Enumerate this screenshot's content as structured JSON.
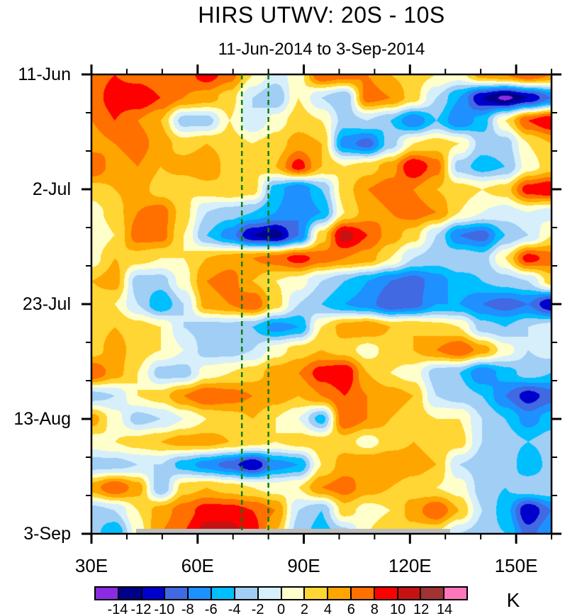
{
  "title": "HIRS UTWV: 20S - 10S",
  "subtitle": "11-Jun-2014 to 3-Sep-2014",
  "colorbar": {
    "units_label": "K",
    "boundary_labels": [
      "-14",
      "-12",
      "-10",
      "-8",
      "-6",
      "-4",
      "-2",
      "0",
      "2",
      "4",
      "6",
      "8",
      "10",
      "12",
      "14"
    ]
  },
  "chart_data": {
    "type": "heatmap",
    "title": "HIRS UTWV: 20S - 10S",
    "subtitle": "11-Jun-2014 to 3-Sep-2014",
    "units": "K",
    "x_axis": "longitude",
    "y_axis": "date (top = 11-Jun-2014, bottom = 3-Sep-2014)",
    "x_range_deg_east": [
      30,
      160
    ],
    "y_range_days": [
      0,
      84
    ],
    "grid_on": false,
    "x_ticks_major": [
      {
        "lon": 30,
        "label": "30E"
      },
      {
        "lon": 60,
        "label": "60E"
      },
      {
        "lon": 90,
        "label": "90E"
      },
      {
        "lon": 120,
        "label": "120E"
      },
      {
        "lon": 150,
        "label": "150E"
      }
    ],
    "x_tick_minor_lons": [
      40,
      50,
      70,
      80,
      100,
      110,
      130,
      140,
      160
    ],
    "y_ticks_major": [
      {
        "day": 0,
        "label": "11-Jun"
      },
      {
        "day": 21,
        "label": "2-Jul"
      },
      {
        "day": 42,
        "label": "23-Jul"
      },
      {
        "day": 63,
        "label": "13-Aug"
      },
      {
        "day": 84,
        "label": "3-Sep"
      }
    ],
    "y_tick_minor_days": [
      7,
      14,
      28,
      35,
      49,
      56,
      70,
      77
    ],
    "levels": [
      -14,
      -12,
      -10,
      -8,
      -6,
      -4,
      -2,
      0,
      2,
      4,
      6,
      8,
      10,
      12,
      14
    ],
    "palette": [
      "#8A2BE2",
      "#000088",
      "#0000CD",
      "#4169E1",
      "#1E90FF",
      "#00BFFF",
      "#A0CEF5",
      "#D6EFFB",
      "#FFFFCC",
      "#FFD633",
      "#FFA500",
      "#FF7000",
      "#FF0000",
      "#C51212",
      "#A03333",
      "#FF77BB"
    ],
    "reference_lines": {
      "style": "dashed",
      "color": "#0E7D0E",
      "lons": [
        72.5,
        80
      ]
    },
    "missing_data_band": {
      "date": "3-Sep",
      "lon_range": [
        42.5,
        131
      ],
      "color": "#BDBDBD"
    },
    "lons": [
      30,
      36.5,
      43,
      49.5,
      56,
      62.5,
      69,
      75.5,
      82,
      88.5,
      95,
      101.5,
      108,
      114.5,
      121,
      127.5,
      134,
      140.5,
      147,
      153.5,
      160
    ],
    "time_days": [
      0,
      4.2,
      8.4,
      12.6,
      16.8,
      21,
      25.2,
      29.4,
      33.6,
      37.8,
      42,
      46.2,
      50.4,
      54.6,
      58.8,
      63,
      67.2,
      71.4,
      75.6,
      79.8,
      84
    ],
    "values": [
      [
        7,
        8,
        7,
        6,
        7,
        9,
        7,
        2,
        -1,
        1,
        8,
        7,
        6,
        4,
        3,
        2,
        1,
        5,
        6,
        8,
        6
      ],
      [
        7,
        9,
        10,
        8,
        6,
        5,
        3,
        -2,
        -4,
        2,
        -2,
        -4,
        7,
        6,
        3,
        -2,
        -6,
        -12,
        -14.6,
        -12,
        -8
      ],
      [
        6,
        8,
        6,
        4,
        -3,
        -3,
        2,
        -2,
        1,
        3,
        2,
        -3,
        -2,
        -4,
        -8,
        -4,
        -8,
        -5,
        2,
        8,
        10
      ],
      [
        5,
        6,
        7,
        5,
        3,
        4,
        3,
        2,
        3,
        5,
        4,
        -7,
        -9,
        -3,
        2,
        3,
        2,
        -3,
        -3,
        2,
        4
      ],
      [
        8,
        5,
        6,
        4,
        5,
        6,
        3,
        2,
        4,
        9,
        4,
        2,
        3,
        5,
        10,
        7,
        -3,
        -5,
        -4,
        1,
        3
      ],
      [
        3,
        4,
        5,
        3,
        2,
        3,
        4,
        3,
        -5,
        -8,
        -4,
        3,
        6,
        7,
        6,
        4,
        3,
        2,
        3,
        9,
        10
      ],
      [
        1,
        3,
        6,
        7,
        3,
        -2,
        -3,
        -4,
        -6,
        -8,
        -6,
        2,
        5,
        6,
        7,
        6,
        2,
        0,
        -1,
        0,
        -1
      ],
      [
        0,
        2,
        7,
        7,
        2,
        -4,
        -7,
        -12,
        -13,
        -8,
        3,
        11,
        8,
        5,
        3,
        -2,
        -8,
        -9,
        -4,
        -2,
        2
      ],
      [
        1,
        4,
        3,
        2,
        2,
        4,
        5,
        6,
        7,
        9,
        7,
        6,
        5,
        2,
        -2,
        -3,
        -2,
        -3,
        2,
        9,
        7
      ],
      [
        4,
        5,
        -3,
        -3,
        1,
        6,
        7,
        4,
        2,
        1,
        -2,
        -4,
        -6,
        -8,
        -9,
        -7,
        -5,
        -4,
        -3,
        -2,
        3
      ],
      [
        3,
        2,
        -2,
        -6,
        -2,
        5,
        6,
        8,
        3,
        -2,
        -4,
        -6,
        -7,
        -10,
        -9,
        -6,
        -6,
        -8,
        -9,
        -8,
        -12
      ],
      [
        3,
        4,
        3,
        2,
        -2,
        -3,
        -3,
        -4,
        -7,
        -6,
        2,
        5,
        6,
        4,
        4,
        3,
        2,
        -3,
        -4,
        -2,
        -1
      ],
      [
        3,
        5,
        3,
        2,
        0,
        -3,
        -3,
        -2,
        1,
        3,
        4,
        3,
        1,
        3,
        4,
        6,
        8,
        5,
        1,
        -2,
        -1
      ],
      [
        8,
        5,
        2,
        -3,
        -3,
        1,
        2,
        3,
        5,
        6,
        9,
        10,
        4,
        2,
        1,
        -3,
        -4,
        -8,
        -5,
        -3,
        -4
      ],
      [
        -3,
        -2,
        2,
        3,
        6,
        8,
        7,
        6,
        5,
        4,
        6,
        8,
        6,
        5,
        4,
        -2,
        -3,
        -4,
        -8,
        -11,
        -9
      ],
      [
        5,
        1,
        -3,
        -2,
        0,
        2,
        3,
        4,
        2,
        0,
        -5,
        8,
        6,
        4,
        3,
        2,
        2,
        -2,
        -4,
        -7,
        -5
      ],
      [
        1,
        2,
        3,
        4,
        5,
        5,
        4,
        3,
        2,
        3,
        3,
        3,
        1,
        3,
        4,
        3,
        3,
        -2,
        -3,
        -4,
        -3
      ],
      [
        -3,
        -3,
        -2,
        -2,
        -5,
        -7,
        -9,
        -12,
        -7,
        -6,
        2,
        5,
        6,
        6,
        5,
        4,
        -2,
        -3,
        -2,
        -6,
        -3
      ],
      [
        5,
        8,
        5,
        -4,
        3,
        4,
        3,
        2,
        1,
        2,
        6,
        7,
        5,
        4,
        3,
        2,
        1,
        -3,
        -4,
        -2,
        -2
      ],
      [
        -3,
        -2,
        2,
        5,
        7,
        9,
        9,
        8,
        6,
        -2,
        -4,
        3,
        1,
        2,
        5,
        8,
        4,
        -2,
        -5,
        -12,
        -8
      ],
      [
        -3,
        -6,
        1,
        6,
        8,
        11,
        11,
        9,
        4,
        -3,
        -5,
        -3,
        2,
        4,
        3,
        2,
        -2,
        -3,
        -4,
        -9,
        -6
      ]
    ]
  }
}
